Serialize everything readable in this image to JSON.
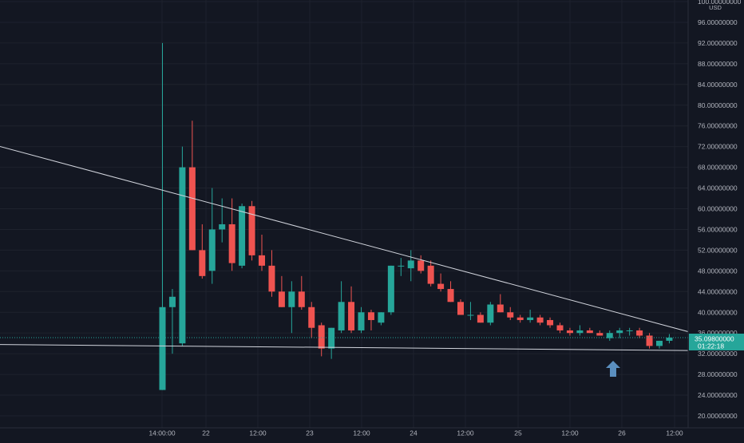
{
  "chart_data": {
    "type": "candlestick",
    "currency": "USD",
    "x_ticks": [
      "14:00:00",
      "22",
      "12:00",
      "23",
      "12:00",
      "24",
      "12:00",
      "25",
      "12:00",
      "26",
      "12:00"
    ],
    "y_ticks": [
      "100.00000000",
      "96.00000000",
      "92.00000000",
      "88.00000000",
      "84.00000000",
      "80.00000000",
      "76.00000000",
      "72.00000000",
      "68.00000000",
      "64.00000000",
      "60.00000000",
      "56.00000000",
      "52.00000000",
      "48.00000000",
      "44.00000000",
      "40.00000000",
      "36.00000000",
      "32.00000000",
      "28.00000000",
      "24.00000000",
      "20.00000000"
    ],
    "ylim": [
      19,
      100.5
    ],
    "current_price": "35.09800000",
    "countdown": "01:22:18",
    "candles": [
      {
        "o": 25.0,
        "h": 92.0,
        "l": 25.0,
        "c": 41.0
      },
      {
        "o": 41.0,
        "h": 44.5,
        "l": 32.0,
        "c": 43.0
      },
      {
        "o": 34.0,
        "h": 72.0,
        "l": 33.5,
        "c": 68.0
      },
      {
        "o": 68.0,
        "h": 77.0,
        "l": 52.0,
        "c": 52.0
      },
      {
        "o": 52.0,
        "h": 57.0,
        "l": 46.5,
        "c": 47.0
      },
      {
        "o": 48.0,
        "h": 64.0,
        "l": 45.5,
        "c": 56.0
      },
      {
        "o": 56.0,
        "h": 62.0,
        "l": 53.5,
        "c": 57.0
      },
      {
        "o": 57.0,
        "h": 62.0,
        "l": 48.0,
        "c": 49.5
      },
      {
        "o": 49.0,
        "h": 61.0,
        "l": 48.5,
        "c": 60.5
      },
      {
        "o": 60.5,
        "h": 61.5,
        "l": 50.0,
        "c": 51.0
      },
      {
        "o": 51.0,
        "h": 55.0,
        "l": 48.0,
        "c": 49.0
      },
      {
        "o": 49.0,
        "h": 52.0,
        "l": 43.0,
        "c": 44.0
      },
      {
        "o": 44.0,
        "h": 47.0,
        "l": 41.0,
        "c": 41.0
      },
      {
        "o": 41.0,
        "h": 46.0,
        "l": 36.0,
        "c": 44.0
      },
      {
        "o": 44.0,
        "h": 47.0,
        "l": 40.5,
        "c": 41.0
      },
      {
        "o": 41.0,
        "h": 42.0,
        "l": 35.0,
        "c": 37.0
      },
      {
        "o": 37.5,
        "h": 38.0,
        "l": 31.5,
        "c": 33.0
      },
      {
        "o": 33.0,
        "h": 37.0,
        "l": 31.0,
        "c": 37.0
      },
      {
        "o": 36.5,
        "h": 46.0,
        "l": 36.0,
        "c": 42.0
      },
      {
        "o": 42.0,
        "h": 45.0,
        "l": 36.0,
        "c": 36.5
      },
      {
        "o": 36.5,
        "h": 41.0,
        "l": 36.0,
        "c": 40.0
      },
      {
        "o": 40.0,
        "h": 40.5,
        "l": 36.5,
        "c": 38.5
      },
      {
        "o": 38.0,
        "h": 40.0,
        "l": 37.5,
        "c": 40.0
      },
      {
        "o": 40.0,
        "h": 49.0,
        "l": 39.5,
        "c": 49.0
      },
      {
        "o": 49.0,
        "h": 50.5,
        "l": 47.0,
        "c": 49.0
      },
      {
        "o": 48.5,
        "h": 52.0,
        "l": 46.0,
        "c": 50.0
      },
      {
        "o": 50.0,
        "h": 51.0,
        "l": 47.5,
        "c": 48.0
      },
      {
        "o": 49.0,
        "h": 50.0,
        "l": 45.0,
        "c": 45.5
      },
      {
        "o": 45.5,
        "h": 47.5,
        "l": 44.0,
        "c": 44.5
      },
      {
        "o": 44.5,
        "h": 46.0,
        "l": 42.0,
        "c": 42.0
      },
      {
        "o": 42.0,
        "h": 42.5,
        "l": 39.5,
        "c": 39.5
      },
      {
        "o": 39.5,
        "h": 42.0,
        "l": 38.5,
        "c": 39.5
      },
      {
        "o": 39.5,
        "h": 40.0,
        "l": 38.0,
        "c": 38.0
      },
      {
        "o": 38.0,
        "h": 42.0,
        "l": 37.5,
        "c": 41.5
      },
      {
        "o": 41.5,
        "h": 43.5,
        "l": 40.0,
        "c": 40.0
      },
      {
        "o": 40.0,
        "h": 41.0,
        "l": 38.5,
        "c": 39.0
      },
      {
        "o": 39.0,
        "h": 39.5,
        "l": 38.0,
        "c": 38.5
      },
      {
        "o": 38.5,
        "h": 40.5,
        "l": 38.0,
        "c": 39.0
      },
      {
        "o": 39.0,
        "h": 39.5,
        "l": 37.5,
        "c": 38.0
      },
      {
        "o": 38.5,
        "h": 39.0,
        "l": 37.0,
        "c": 37.5
      },
      {
        "o": 37.5,
        "h": 38.0,
        "l": 36.0,
        "c": 36.5
      },
      {
        "o": 36.5,
        "h": 37.0,
        "l": 35.5,
        "c": 36.0
      },
      {
        "o": 36.0,
        "h": 37.5,
        "l": 35.5,
        "c": 36.5
      },
      {
        "o": 36.5,
        "h": 37.0,
        "l": 36.0,
        "c": 36.0
      },
      {
        "o": 36.0,
        "h": 36.5,
        "l": 35.5,
        "c": 35.5
      },
      {
        "o": 35.0,
        "h": 36.5,
        "l": 34.5,
        "c": 36.0
      },
      {
        "o": 36.0,
        "h": 37.0,
        "l": 35.0,
        "c": 36.5
      },
      {
        "o": 36.5,
        "h": 37.0,
        "l": 35.5,
        "c": 36.5
      },
      {
        "o": 36.5,
        "h": 37.0,
        "l": 35.0,
        "c": 35.5
      },
      {
        "o": 35.5,
        "h": 36.0,
        "l": 33.0,
        "c": 33.5
      },
      {
        "o": 33.5,
        "h": 34.5,
        "l": 33.0,
        "c": 34.5
      },
      {
        "o": 34.5,
        "h": 35.8,
        "l": 34.0,
        "c": 35.1
      }
    ],
    "trendlines": [
      {
        "t0": -19.2,
        "p0": 73.5,
        "t1": 59.2,
        "p1": 33.0
      },
      {
        "t0": -29.2,
        "p0": 34.0,
        "t1": 59.7,
        "p1": 32.5
      }
    ],
    "colors": {
      "up": "#26a69a",
      "down": "#ef5350",
      "background": "#131722",
      "grid": "#1e222d",
      "axis_text": "#b2b5be",
      "trendline": "#d1d4dc",
      "arrow": "#5b8fbf"
    }
  }
}
